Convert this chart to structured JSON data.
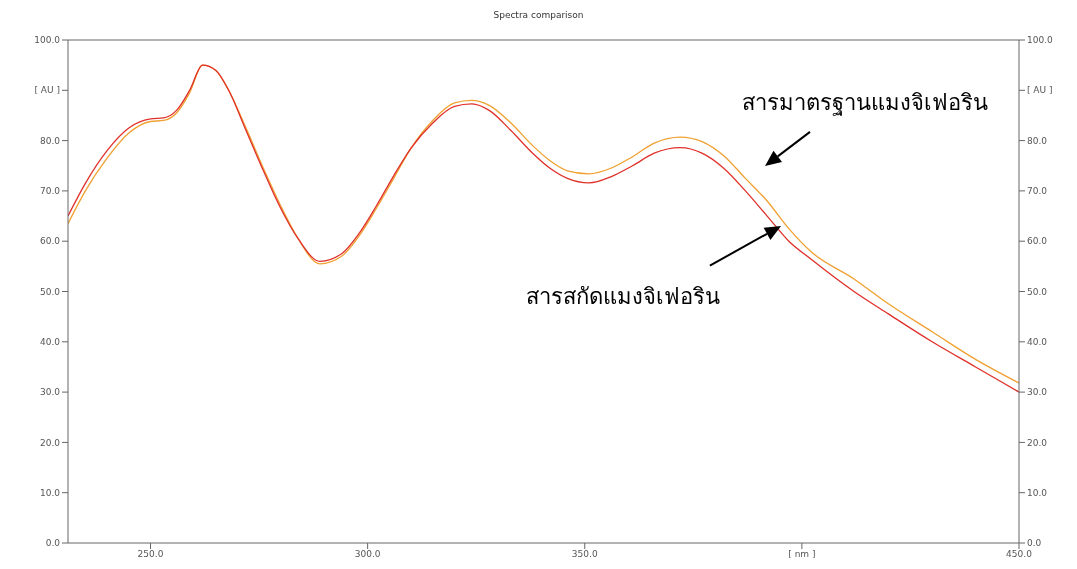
{
  "chart_data": {
    "type": "line",
    "title": "Spectra comparison",
    "x": [
      231,
      235,
      240,
      245,
      250,
      253,
      256,
      259,
      262,
      265,
      268,
      272,
      276,
      280,
      284,
      289,
      294,
      298,
      302,
      306,
      310,
      315,
      320,
      324,
      328,
      333,
      338,
      342,
      346,
      351,
      356,
      361,
      366,
      372,
      377,
      382,
      387,
      392,
      397,
      402,
      412,
      420,
      430,
      440,
      450
    ],
    "series": [
      {
        "color": "#f0a030",
        "values": [
          63.5,
          70,
          76.5,
          81.5,
          83.8,
          84,
          85.5,
          89.5,
          95,
          94,
          90,
          82.5,
          74.5,
          67,
          60.5,
          55.5,
          57,
          61,
          66.5,
          72.5,
          78.5,
          84,
          87.5,
          88,
          87,
          83.5,
          79,
          76,
          74,
          73.4,
          74.5,
          76.8,
          79.5,
          80.7,
          79.8,
          77,
          72.5,
          68,
          62.5,
          58,
          52.5,
          47.5,
          42,
          36.5,
          31.8
        ]
      },
      {
        "color": "#e0302a",
        "values": [
          65,
          71.5,
          78,
          82.5,
          84.3,
          84.5,
          86,
          90,
          95,
          94,
          90,
          82,
          74,
          66.5,
          60.5,
          56,
          57.5,
          61.5,
          67,
          73,
          78.5,
          83.5,
          86.8,
          87.3,
          86,
          82,
          77.5,
          74.5,
          72.5,
          71.6,
          72.8,
          75,
          77.5,
          78.6,
          77.5,
          74.5,
          70,
          65,
          60,
          56.5,
          50,
          45.5,
          40,
          35,
          30
        ]
      }
    ],
    "xlim": [
      231,
      450
    ],
    "xticks": [
      {
        "value": 250,
        "label": "250.0"
      },
      {
        "value": 300,
        "label": "300.0"
      },
      {
        "value": 350,
        "label": "350.0"
      },
      {
        "value": 400,
        "label": "[ nm ]"
      },
      {
        "value": 450,
        "label": "450.0"
      }
    ],
    "ylim": [
      0,
      100
    ],
    "yticks": [
      {
        "value": 0,
        "label": "0.0"
      },
      {
        "value": 10,
        "label": "10.0"
      },
      {
        "value": 20,
        "label": "20.0"
      },
      {
        "value": 30,
        "label": "30.0"
      },
      {
        "value": 40,
        "label": "40.0"
      },
      {
        "value": 50,
        "label": "50.0"
      },
      {
        "value": 60,
        "label": "60.0"
      },
      {
        "value": 70,
        "label": "70.0"
      },
      {
        "value": 80,
        "label": "80.0"
      },
      {
        "value": 90,
        "label": "[ AU ]"
      },
      {
        "value": 100,
        "label": "100.0"
      }
    ],
    "y2lim": [
      0,
      100
    ],
    "y2ticks": [
      {
        "value": 0,
        "label": "0.0"
      },
      {
        "value": 10,
        "label": "10.0"
      },
      {
        "value": 20,
        "label": "20.0"
      },
      {
        "value": 30,
        "label": "30.0"
      },
      {
        "value": 40,
        "label": "40.0"
      },
      {
        "value": 50,
        "label": "50.0"
      },
      {
        "value": 60,
        "label": "60.0"
      },
      {
        "value": 70,
        "label": "70.0"
      },
      {
        "value": 80,
        "label": "80.0"
      },
      {
        "value": 90,
        "label": "[ AU ]"
      },
      {
        "value": 100,
        "label": "100.0"
      }
    ],
    "annotations": [
      "สารมาตรฐานแมงจิเฟอริน",
      "สารสกัดแมงจิเฟอริน"
    ],
    "grid": false,
    "legend": false,
    "marker": "none",
    "line_style": "solid"
  }
}
